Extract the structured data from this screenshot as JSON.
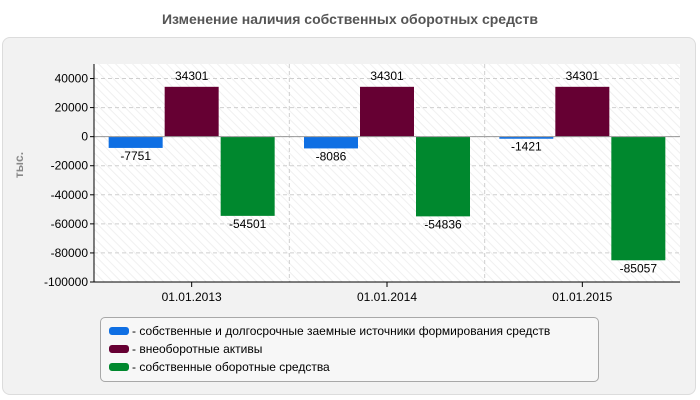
{
  "chart_data": {
    "type": "bar",
    "title": "Изменение наличия собственных оборотных средств",
    "ylabel": "тыс.",
    "xlabel": "",
    "categories": [
      "01.01.2013",
      "01.01.2014",
      "01.01.2015"
    ],
    "series": [
      {
        "name": "- собственные и долгосрочные заемные источники формирования средств",
        "color": "#0f6fe3",
        "values": [
          -7751,
          -8086,
          -1421
        ]
      },
      {
        "name": "- внеоборотные активы",
        "color": "#660033",
        "values": [
          34301,
          34301,
          34301
        ]
      },
      {
        "name": "- собственные оборотные средства",
        "color": "#00882e",
        "values": [
          -54501,
          -54836,
          -85057
        ]
      }
    ],
    "ylim": [
      -100000,
      50000
    ],
    "yticks": [
      40000,
      20000,
      0,
      -20000,
      -40000,
      -60000,
      -80000,
      -100000
    ],
    "grid": true,
    "legend_position": "bottom"
  }
}
